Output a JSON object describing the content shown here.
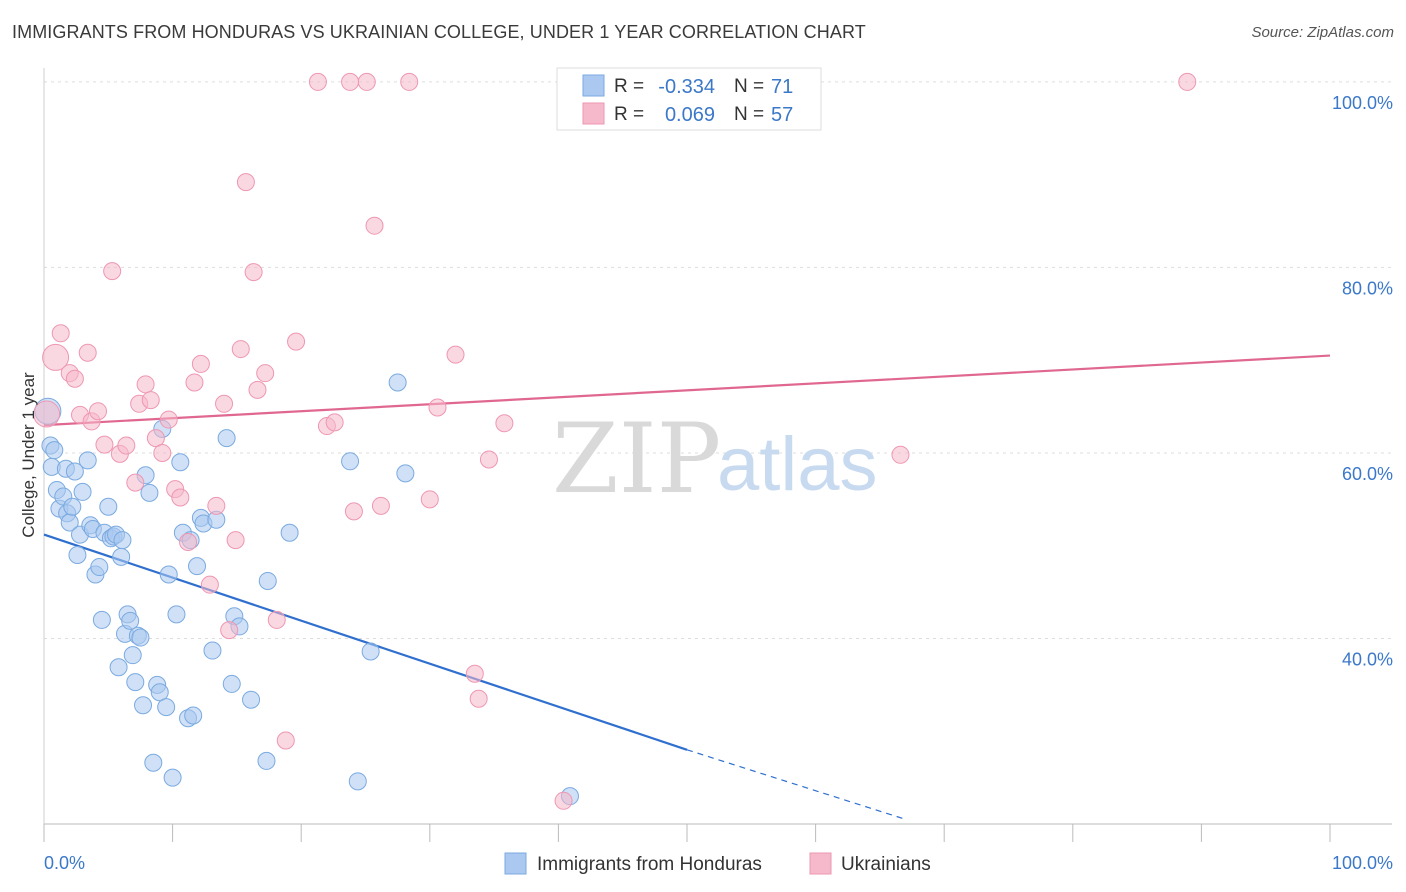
{
  "header": {
    "title": "IMMIGRANTS FROM HONDURAS VS UKRAINIAN COLLEGE, UNDER 1 YEAR CORRELATION CHART",
    "source": "Source: ZipAtlas.com"
  },
  "watermark": {
    "zip": "ZIP",
    "atlas": "atlas"
  },
  "legend_box": {
    "rows": [
      {
        "r_label": "R =",
        "r_value": "-0.334",
        "n_label": "N =",
        "n_value": "71",
        "color": "#aac8f0"
      },
      {
        "r_label": "R =",
        "r_value": "0.069",
        "n_label": "N =",
        "n_value": "57",
        "color": "#f6b8cb"
      }
    ]
  },
  "bottom_legend": [
    {
      "label": "Immigrants from Honduras",
      "color": "#aac8f0"
    },
    {
      "label": "Ukrainians",
      "color": "#f6b8cb"
    }
  ],
  "chart_data": {
    "type": "scatter",
    "title": "IMMIGRANTS FROM HONDURAS VS UKRAINIAN COLLEGE, UNDER 1 YEAR CORRELATION CHART",
    "xlabel": "",
    "ylabel": "College, Under 1 year",
    "xlim": [
      0,
      100
    ],
    "ylim": [
      20,
      101.5
    ],
    "x_tick_labels": [
      {
        "value": 0,
        "label": "0.0%"
      },
      {
        "value": 100,
        "label": "100.0%"
      }
    ],
    "y_tick_labels": [
      {
        "value": 40,
        "label": "40.0%"
      },
      {
        "value": 60,
        "label": "60.0%"
      },
      {
        "value": 80,
        "label": "80.0%"
      },
      {
        "value": 100,
        "label": "100.0%"
      }
    ],
    "grid": true,
    "legend_position": "top-center",
    "series": [
      {
        "name": "Immigrants from Honduras",
        "color": "#aac8f0",
        "stroke": "#7aaae0",
        "trend": {
          "x": [
            0,
            50
          ],
          "y": [
            51.2,
            28.0
          ],
          "dashed_to": [
            67,
            20.5
          ],
          "color": "#2f6fce"
        },
        "points": [
          [
            0.3,
            64.5
          ],
          [
            0.5,
            60.8
          ],
          [
            0.6,
            58.5
          ],
          [
            0.8,
            60.3
          ],
          [
            1.0,
            56.0
          ],
          [
            1.2,
            54.0
          ],
          [
            1.5,
            55.3
          ],
          [
            1.7,
            58.3
          ],
          [
            1.8,
            53.5
          ],
          [
            2.0,
            52.5
          ],
          [
            2.2,
            54.2
          ],
          [
            2.4,
            58.0
          ],
          [
            2.6,
            49.0
          ],
          [
            2.8,
            51.2
          ],
          [
            3.0,
            55.8
          ],
          [
            3.4,
            59.2
          ],
          [
            3.6,
            52.2
          ],
          [
            3.8,
            51.8
          ],
          [
            4.0,
            46.9
          ],
          [
            4.3,
            47.7
          ],
          [
            4.5,
            42.0
          ],
          [
            4.7,
            51.4
          ],
          [
            5.0,
            54.2
          ],
          [
            5.2,
            50.8
          ],
          [
            5.4,
            51.0
          ],
          [
            5.6,
            51.2
          ],
          [
            5.8,
            36.9
          ],
          [
            6.0,
            48.8
          ],
          [
            6.1,
            50.6
          ],
          [
            6.3,
            40.5
          ],
          [
            6.5,
            42.6
          ],
          [
            6.7,
            41.9
          ],
          [
            6.9,
            38.2
          ],
          [
            7.1,
            35.3
          ],
          [
            7.3,
            40.3
          ],
          [
            7.5,
            40.1
          ],
          [
            7.7,
            32.8
          ],
          [
            7.9,
            57.6
          ],
          [
            8.2,
            55.7
          ],
          [
            8.5,
            26.6
          ],
          [
            8.8,
            35.0
          ],
          [
            9.0,
            34.2
          ],
          [
            9.2,
            62.6
          ],
          [
            9.5,
            32.6
          ],
          [
            9.7,
            46.9
          ],
          [
            10.0,
            25.0
          ],
          [
            10.3,
            42.6
          ],
          [
            10.6,
            59.0
          ],
          [
            10.8,
            51.4
          ],
          [
            11.2,
            31.4
          ],
          [
            11.4,
            50.6
          ],
          [
            11.6,
            31.7
          ],
          [
            11.9,
            47.8
          ],
          [
            12.2,
            53.0
          ],
          [
            12.4,
            52.4
          ],
          [
            13.1,
            38.7
          ],
          [
            13.4,
            52.8
          ],
          [
            14.2,
            61.6
          ],
          [
            14.6,
            35.1
          ],
          [
            14.8,
            42.4
          ],
          [
            15.2,
            41.3
          ],
          [
            16.1,
            33.4
          ],
          [
            17.3,
            26.8
          ],
          [
            17.4,
            46.2
          ],
          [
            19.1,
            51.4
          ],
          [
            23.8,
            59.1
          ],
          [
            24.4,
            24.6
          ],
          [
            25.4,
            38.6
          ],
          [
            27.5,
            67.6
          ],
          [
            28.1,
            57.8
          ],
          [
            40.9,
            23.0
          ]
        ]
      },
      {
        "name": "Ukrainians",
        "color": "#f6b8cb",
        "stroke": "#ee97b2",
        "trend": {
          "x": [
            0,
            100
          ],
          "y": [
            63.0,
            70.5
          ],
          "color": "#e06890"
        },
        "points": [
          [
            0.2,
            64.2
          ],
          [
            0.9,
            70.3
          ],
          [
            1.3,
            72.9
          ],
          [
            2.0,
            68.6
          ],
          [
            2.4,
            68.0
          ],
          [
            2.8,
            64.1
          ],
          [
            3.4,
            70.8
          ],
          [
            3.7,
            63.4
          ],
          [
            4.2,
            64.5
          ],
          [
            4.7,
            60.9
          ],
          [
            5.3,
            79.6
          ],
          [
            5.9,
            59.9
          ],
          [
            6.4,
            60.8
          ],
          [
            7.1,
            56.8
          ],
          [
            7.4,
            65.3
          ],
          [
            7.9,
            67.4
          ],
          [
            8.3,
            65.7
          ],
          [
            8.7,
            61.6
          ],
          [
            9.2,
            60.0
          ],
          [
            9.7,
            63.6
          ],
          [
            10.2,
            56.1
          ],
          [
            10.6,
            55.2
          ],
          [
            11.2,
            50.4
          ],
          [
            11.7,
            67.6
          ],
          [
            12.2,
            69.6
          ],
          [
            12.9,
            45.8
          ],
          [
            13.4,
            54.3
          ],
          [
            14.0,
            65.3
          ],
          [
            14.4,
            40.9
          ],
          [
            14.9,
            50.6
          ],
          [
            15.3,
            71.2
          ],
          [
            15.7,
            89.2
          ],
          [
            16.3,
            79.5
          ],
          [
            16.6,
            66.8
          ],
          [
            17.2,
            68.6
          ],
          [
            18.1,
            42.0
          ],
          [
            18.8,
            29.0
          ],
          [
            19.6,
            72.0
          ],
          [
            21.3,
            100.0
          ],
          [
            22.0,
            62.9
          ],
          [
            22.6,
            63.3
          ],
          [
            23.8,
            100.0
          ],
          [
            24.1,
            53.7
          ],
          [
            25.1,
            100.0
          ],
          [
            25.7,
            84.5
          ],
          [
            26.2,
            54.3
          ],
          [
            28.4,
            100.0
          ],
          [
            30.0,
            55.0
          ],
          [
            30.6,
            64.9
          ],
          [
            32.0,
            70.6
          ],
          [
            33.5,
            36.2
          ],
          [
            33.8,
            33.5
          ],
          [
            34.6,
            59.3
          ],
          [
            35.8,
            63.2
          ],
          [
            40.4,
            22.5
          ],
          [
            66.6,
            59.8
          ],
          [
            88.9,
            100.0
          ]
        ]
      }
    ]
  }
}
